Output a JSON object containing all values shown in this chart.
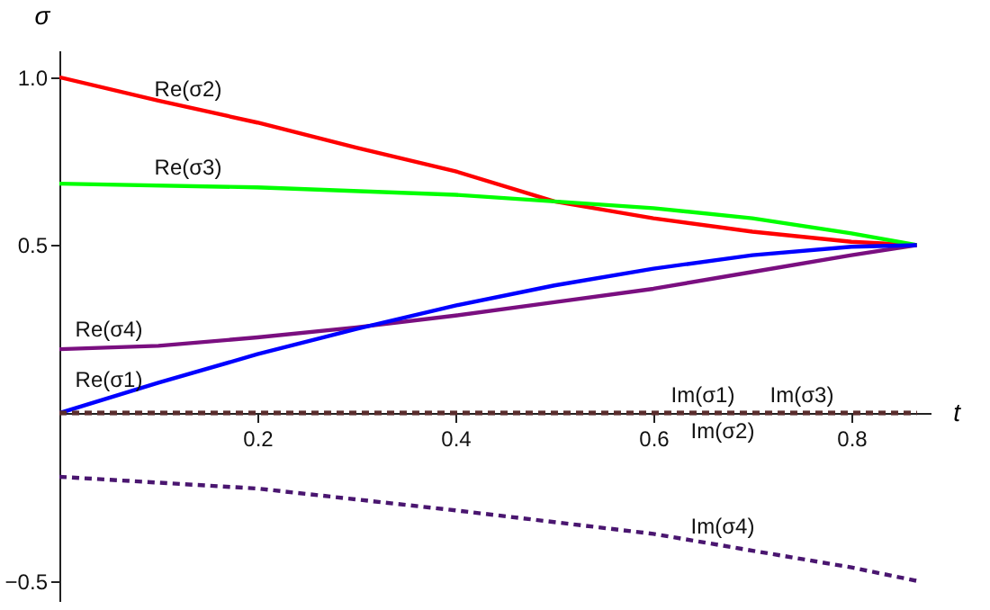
{
  "chart_data": {
    "type": "line",
    "xlabel": "t",
    "ylabel": "σ",
    "xlim": [
      0,
      0.88
    ],
    "ylim": [
      -0.56,
      1.08
    ],
    "xticks": [
      0.2,
      0.4,
      0.6,
      0.8
    ],
    "yticks": [
      {
        "value": -0.5,
        "label": "−0.5"
      },
      0.5,
      {
        "value": 1,
        "label": "1.0"
      }
    ],
    "grid": false,
    "series": [
      {
        "color": "#ff0000",
        "x": [
          0,
          0.1,
          0.2,
          0.3,
          0.4,
          0.5,
          0.6,
          0.7,
          0.8,
          0.866
        ],
        "values": [
          1.0,
          0.93,
          0.865,
          0.79,
          0.72,
          0.63,
          0.58,
          0.54,
          0.51,
          0.5
        ]
      },
      {
        "color": "#00ff00",
        "x": [
          0,
          0.2,
          0.4,
          0.5,
          0.6,
          0.7,
          0.8,
          0.866
        ],
        "values": [
          0.683,
          0.672,
          0.65,
          0.63,
          0.61,
          0.58,
          0.535,
          0.5
        ]
      },
      {
        "color": "#7a0f80",
        "x": [
          0,
          0.1,
          0.2,
          0.3,
          0.4,
          0.5,
          0.6,
          0.7,
          0.8,
          0.866
        ],
        "values": [
          0.19,
          0.2,
          0.225,
          0.255,
          0.29,
          0.33,
          0.37,
          0.42,
          0.47,
          0.5
        ]
      },
      {
        "color": "#0000ff",
        "x": [
          0,
          0.1,
          0.2,
          0.3,
          0.4,
          0.5,
          0.6,
          0.7,
          0.8,
          0.866
        ],
        "values": [
          0,
          0.09,
          0.175,
          0.25,
          0.32,
          0.38,
          0.43,
          0.47,
          0.495,
          0.5
        ]
      },
      {
        "color": "#5a2d2d",
        "line_style": "dashed",
        "x": [
          0,
          0.866
        ],
        "values": [
          0,
          0
        ]
      },
      {
        "color": "#5a2d2d",
        "line_style": "dashed",
        "x": [
          0,
          0.866
        ],
        "values": [
          0,
          0
        ]
      },
      {
        "color": "#5a2d2d",
        "line_style": "dashed",
        "x": [
          0,
          0.866
        ],
        "values": [
          0,
          0
        ]
      },
      {
        "color": "#4a1670",
        "line_style": "dashed",
        "x": [
          0,
          0.2,
          0.4,
          0.6,
          0.8,
          0.866
        ],
        "values": [
          -0.19,
          -0.225,
          -0.29,
          -0.36,
          -0.46,
          -0.5
        ]
      }
    ],
    "annotations": [
      {
        "text": "Re(σ2)",
        "x": 0.13,
        "y": 0.91
      },
      {
        "text": "Re(σ3)",
        "x": 0.13,
        "y": 0.677
      },
      {
        "text": "Re(σ4)",
        "x": 0.05,
        "y": 0.195
      },
      {
        "text": "Re(σ1)",
        "x": 0.05,
        "y": 0.045
      },
      {
        "text": "Im(σ1)",
        "x": 0.65,
        "y": 0
      },
      {
        "text": "Im(σ3)",
        "x": 0.75,
        "y": 0
      },
      {
        "text": "Im(σ2)",
        "x": 0.67,
        "y": 0
      },
      {
        "text": "Im(σ4)",
        "x": 0.67,
        "y": -0.39
      }
    ]
  }
}
